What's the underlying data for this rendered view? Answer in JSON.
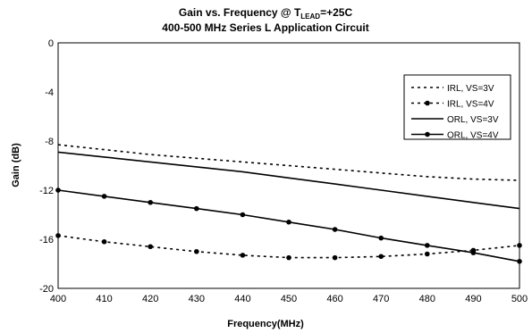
{
  "chart_data": {
    "type": "line",
    "title_main": "Gain vs. Frequency @ T",
    "title_sub": "LEAD",
    "title_tail": "=+25C",
    "subtitle": "400-500 MHz Series L Application Circuit",
    "xlabel": "Frequency(MHz)",
    "ylabel": "Gain (dB)",
    "xlim": [
      400,
      500
    ],
    "ylim": [
      -20,
      0
    ],
    "x_ticks": [
      400,
      410,
      420,
      430,
      440,
      450,
      460,
      470,
      480,
      490,
      500
    ],
    "y_ticks": [
      0,
      -4,
      -8,
      -12,
      -16,
      -20
    ],
    "grid": true,
    "legend_position": "top-right",
    "x": [
      400,
      410,
      420,
      430,
      440,
      450,
      460,
      470,
      480,
      490,
      500
    ],
    "series": [
      {
        "name": "IRL, VS=3V",
        "style": "dotted",
        "markers": false,
        "values": [
          -8.3,
          -8.7,
          -9.1,
          -9.4,
          -9.7,
          -10.0,
          -10.3,
          -10.6,
          -10.9,
          -11.1,
          -11.2
        ]
      },
      {
        "name": "IRL, VS=4V",
        "style": "dotted",
        "markers": true,
        "values": [
          -15.7,
          -16.2,
          -16.6,
          -17.0,
          -17.3,
          -17.5,
          -17.5,
          -17.4,
          -17.2,
          -16.9,
          -16.5
        ]
      },
      {
        "name": "ORL, VS=3V",
        "style": "solid",
        "markers": false,
        "values": [
          -8.9,
          -9.3,
          -9.7,
          -10.1,
          -10.5,
          -11.0,
          -11.5,
          -12.0,
          -12.5,
          -13.0,
          -13.5
        ]
      },
      {
        "name": "ORL, VS=4V",
        "style": "solid",
        "markers": true,
        "values": [
          -12.0,
          -12.5,
          -13.0,
          -13.5,
          -14.0,
          -14.6,
          -15.2,
          -15.9,
          -16.5,
          -17.1,
          -17.8
        ]
      }
    ]
  }
}
